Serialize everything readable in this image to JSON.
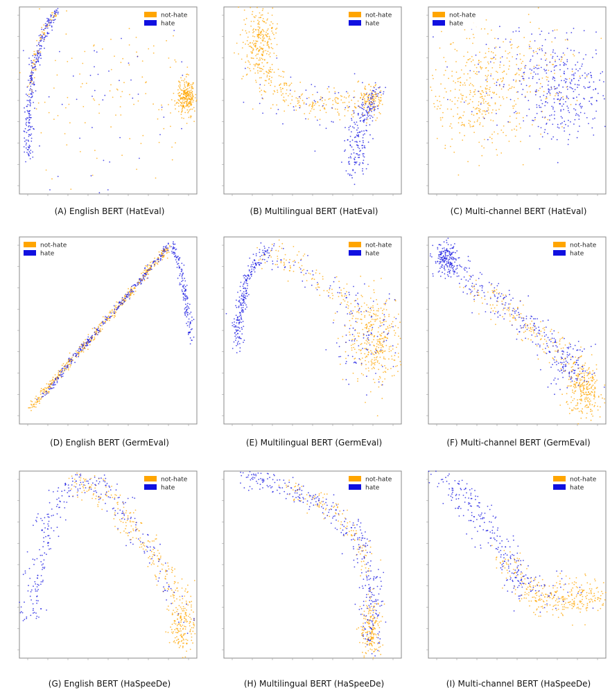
{
  "colors": {
    "not_hate": "#FFA500",
    "hate": "#1010E0",
    "frame": "#888888"
  },
  "chart_data": [
    {
      "id": "A",
      "type": "scatter",
      "caption": "(A) English BERT (HatEval)",
      "legend": [
        "not-hate",
        "hate"
      ],
      "legend_position": "top-right",
      "xlim": [
        -0.5,
        0.5
      ],
      "ylim": [
        -0.5,
        0.5
      ],
      "clusters": [
        {
          "series": "hate",
          "kind": "curve",
          "n": 260,
          "spread": 0.012,
          "points": [
            [
              -0.45,
              -0.3
            ],
            [
              -0.45,
              -0.1
            ],
            [
              -0.43,
              0.1
            ],
            [
              -0.39,
              0.28
            ],
            [
              -0.33,
              0.42
            ],
            [
              -0.28,
              0.48
            ]
          ]
        },
        {
          "series": "not-hate",
          "kind": "curve",
          "n": 70,
          "spread": 0.01,
          "points": [
            [
              -0.44,
              0.05
            ],
            [
              -0.41,
              0.25
            ],
            [
              -0.35,
              0.4
            ],
            [
              -0.29,
              0.47
            ]
          ]
        },
        {
          "series": "not-hate",
          "kind": "blob",
          "n": 260,
          "center": [
            0.44,
            0.02
          ],
          "spread": [
            0.025,
            0.05
          ]
        },
        {
          "series": "not-hate",
          "kind": "cloud",
          "n": 130,
          "center": [
            0.05,
            0.0
          ],
          "spread": [
            0.3,
            0.22
          ]
        },
        {
          "series": "hate",
          "kind": "cloud",
          "n": 45,
          "center": [
            0.0,
            -0.05
          ],
          "spread": [
            0.3,
            0.22
          ]
        }
      ]
    },
    {
      "id": "B",
      "type": "scatter",
      "caption": "(B) Multilingual BERT (HatEval)",
      "legend": [
        "not-hate",
        "hate"
      ],
      "legend_position": "top-right",
      "xlim": [
        -0.5,
        0.5
      ],
      "ylim": [
        -0.5,
        0.5
      ],
      "clusters": [
        {
          "series": "not-hate",
          "kind": "blob",
          "n": 260,
          "center": [
            -0.3,
            0.33
          ],
          "spread": [
            0.045,
            0.1
          ]
        },
        {
          "series": "not-hate",
          "kind": "curve",
          "n": 240,
          "spread": 0.035,
          "points": [
            [
              -0.3,
              0.2
            ],
            [
              -0.2,
              0.05
            ],
            [
              -0.05,
              -0.02
            ],
            [
              0.1,
              -0.02
            ],
            [
              0.22,
              -0.01
            ],
            [
              0.33,
              0.0
            ]
          ]
        },
        {
          "series": "not-hate",
          "kind": "blob",
          "n": 90,
          "center": [
            0.34,
            0.0
          ],
          "spread": [
            0.03,
            0.04
          ]
        },
        {
          "series": "hate",
          "kind": "curve",
          "n": 220,
          "spread": 0.03,
          "points": [
            [
              0.36,
              0.05
            ],
            [
              0.31,
              -0.05
            ],
            [
              0.26,
              -0.15
            ],
            [
              0.24,
              -0.25
            ],
            [
              0.24,
              -0.38
            ]
          ]
        },
        {
          "series": "hate",
          "kind": "cloud",
          "n": 45,
          "center": [
            0.0,
            0.0
          ],
          "spread": [
            0.18,
            0.08
          ]
        }
      ]
    },
    {
      "id": "C",
      "type": "scatter",
      "caption": "(C) Multi-channel BERT (HatEval)",
      "legend": [
        "not-hate",
        "hate"
      ],
      "legend_position": "top-left",
      "xlim": [
        -0.5,
        0.5
      ],
      "ylim": [
        -0.5,
        0.5
      ],
      "clusters": [
        {
          "series": "not-hate",
          "kind": "cloud",
          "n": 330,
          "center": [
            -0.22,
            0.02
          ],
          "spread": [
            0.14,
            0.15
          ]
        },
        {
          "series": "not-hate",
          "kind": "cloud",
          "n": 150,
          "center": [
            0.05,
            0.12
          ],
          "spread": [
            0.22,
            0.15
          ]
        },
        {
          "series": "hate",
          "kind": "cloud",
          "n": 300,
          "center": [
            0.27,
            0.05
          ],
          "spread": [
            0.12,
            0.13
          ]
        },
        {
          "series": "hate",
          "kind": "cloud",
          "n": 90,
          "center": [
            0.0,
            0.15
          ],
          "spread": [
            0.2,
            0.15
          ]
        }
      ]
    },
    {
      "id": "D",
      "type": "scatter",
      "caption": "(D) English BERT (GermEval)",
      "legend": [
        "not-hate",
        "hate"
      ],
      "legend_position": "top-left",
      "xlim": [
        -0.5,
        0.5
      ],
      "ylim": [
        -0.5,
        0.5
      ],
      "clusters": [
        {
          "series": "not-hate",
          "kind": "curve",
          "n": 450,
          "spread": 0.01,
          "points": [
            [
              -0.44,
              -0.42
            ],
            [
              -0.2,
              -0.15
            ],
            [
              0.05,
              0.12
            ],
            [
              0.25,
              0.35
            ],
            [
              0.35,
              0.45
            ]
          ]
        },
        {
          "series": "hate",
          "kind": "curve",
          "n": 280,
          "spread": 0.008,
          "points": [
            [
              -0.38,
              -0.37
            ],
            [
              -0.2,
              -0.15
            ],
            [
              0.05,
              0.12
            ],
            [
              0.25,
              0.35
            ],
            [
              0.34,
              0.45
            ]
          ]
        },
        {
          "series": "hate",
          "kind": "curve",
          "n": 150,
          "spread": 0.01,
          "points": [
            [
              0.36,
              0.46
            ],
            [
              0.41,
              0.32
            ],
            [
              0.45,
              0.12
            ],
            [
              0.47,
              -0.05
            ]
          ]
        }
      ]
    },
    {
      "id": "E",
      "type": "scatter",
      "caption": "(E) Multilingual BERT (GermEval)",
      "legend": [
        "not-hate",
        "hate"
      ],
      "legend_position": "top-right",
      "xlim": [
        -0.5,
        0.5
      ],
      "ylim": [
        -0.5,
        0.5
      ],
      "clusters": [
        {
          "series": "hate",
          "kind": "curve",
          "n": 230,
          "spread": 0.015,
          "points": [
            [
              -0.42,
              -0.1
            ],
            [
              -0.42,
              0.05
            ],
            [
              -0.38,
              0.25
            ],
            [
              -0.3,
              0.4
            ],
            [
              -0.23,
              0.44
            ]
          ]
        },
        {
          "series": "not-hate",
          "kind": "curve",
          "n": 120,
          "spread": 0.04,
          "points": [
            [
              -0.3,
              0.4
            ],
            [
              -0.15,
              0.38
            ],
            [
              0.0,
              0.3
            ],
            [
              0.15,
              0.18
            ],
            [
              0.3,
              0.05
            ]
          ]
        },
        {
          "series": "hate",
          "kind": "curve",
          "n": 60,
          "spread": 0.04,
          "points": [
            [
              -0.3,
              0.4
            ],
            [
              -0.15,
              0.38
            ],
            [
              0.0,
              0.3
            ],
            [
              0.15,
              0.18
            ],
            [
              0.3,
              0.05
            ]
          ]
        },
        {
          "series": "not-hate",
          "kind": "blob",
          "n": 330,
          "center": [
            0.36,
            -0.05
          ],
          "spread": [
            0.08,
            0.12
          ]
        },
        {
          "series": "hate",
          "kind": "blob",
          "n": 90,
          "center": [
            0.3,
            -0.05
          ],
          "spread": [
            0.1,
            0.12
          ]
        }
      ]
    },
    {
      "id": "F",
      "type": "scatter",
      "caption": "(F) Multi-channel BERT (GermEval)",
      "legend": [
        "not-hate",
        "hate"
      ],
      "legend_position": "top-right",
      "xlim": [
        -0.5,
        0.5
      ],
      "ylim": [
        -0.5,
        0.5
      ],
      "clusters": [
        {
          "series": "hate",
          "kind": "blob",
          "n": 170,
          "center": [
            -0.4,
            0.38
          ],
          "spread": [
            0.035,
            0.045
          ]
        },
        {
          "series": "hate",
          "kind": "curve",
          "n": 240,
          "spread": 0.04,
          "points": [
            [
              -0.4,
              0.38
            ],
            [
              -0.2,
              0.22
            ],
            [
              0.0,
              0.08
            ],
            [
              0.2,
              -0.08
            ],
            [
              0.38,
              -0.25
            ]
          ]
        },
        {
          "series": "not-hate",
          "kind": "curve",
          "n": 170,
          "spread": 0.04,
          "points": [
            [
              -0.25,
              0.25
            ],
            [
              -0.05,
              0.1
            ],
            [
              0.15,
              -0.05
            ],
            [
              0.35,
              -0.2
            ]
          ]
        },
        {
          "series": "not-hate",
          "kind": "blob",
          "n": 260,
          "center": [
            0.38,
            -0.32
          ],
          "spread": [
            0.05,
            0.07
          ]
        },
        {
          "series": "hate",
          "kind": "blob",
          "n": 70,
          "center": [
            0.3,
            -0.2
          ],
          "spread": [
            0.06,
            0.06
          ]
        }
      ]
    },
    {
      "id": "G",
      "type": "scatter",
      "caption": "(G) English BERT (HaSpeeDe)",
      "legend": [
        "not-hate",
        "hate"
      ],
      "legend_position": "top-right",
      "xlim": [
        -0.5,
        0.5
      ],
      "ylim": [
        -0.5,
        0.5
      ],
      "clusters": [
        {
          "series": "hate",
          "kind": "curve",
          "n": 230,
          "spread": 0.035,
          "points": [
            [
              -0.44,
              -0.3
            ],
            [
              -0.38,
              0.05
            ],
            [
              -0.3,
              0.3
            ],
            [
              -0.2,
              0.45
            ],
            [
              -0.05,
              0.42
            ],
            [
              0.1,
              0.32
            ]
          ]
        },
        {
          "series": "not-hate",
          "kind": "curve",
          "n": 200,
          "spread": 0.035,
          "points": [
            [
              -0.2,
              0.45
            ],
            [
              -0.05,
              0.38
            ],
            [
              0.1,
              0.25
            ],
            [
              0.25,
              0.05
            ],
            [
              0.38,
              -0.15
            ]
          ]
        },
        {
          "series": "not-hate",
          "kind": "blob",
          "n": 190,
          "center": [
            0.42,
            -0.3
          ],
          "spread": [
            0.035,
            0.09
          ]
        },
        {
          "series": "hate",
          "kind": "curve",
          "n": 70,
          "spread": 0.035,
          "points": [
            [
              0.05,
              0.3
            ],
            [
              0.2,
              0.1
            ],
            [
              0.35,
              -0.12
            ],
            [
              0.42,
              -0.32
            ]
          ]
        }
      ]
    },
    {
      "id": "H",
      "type": "scatter",
      "caption": "(H) Multilingual BERT (HaSpeeDe)",
      "legend": [
        "not-hate",
        "hate"
      ],
      "legend_position": "top-right",
      "xlim": [
        -0.5,
        0.5
      ],
      "ylim": [
        -0.5,
        0.5
      ],
      "clusters": [
        {
          "series": "hate",
          "kind": "curve",
          "n": 260,
          "spread": 0.03,
          "points": [
            [
              -0.42,
              0.47
            ],
            [
              -0.15,
              0.42
            ],
            [
              0.1,
              0.3
            ],
            [
              0.25,
              0.15
            ],
            [
              0.32,
              -0.05
            ],
            [
              0.34,
              -0.25
            ]
          ]
        },
        {
          "series": "not-hate",
          "kind": "curve",
          "n": 120,
          "spread": 0.03,
          "points": [
            [
              -0.15,
              0.42
            ],
            [
              0.1,
              0.3
            ],
            [
              0.25,
              0.15
            ],
            [
              0.32,
              -0.05
            ]
          ]
        },
        {
          "series": "not-hate",
          "kind": "blob",
          "n": 180,
          "center": [
            0.33,
            -0.35
          ],
          "spread": [
            0.03,
            0.08
          ]
        },
        {
          "series": "hate",
          "kind": "blob",
          "n": 70,
          "center": [
            0.33,
            -0.3
          ],
          "spread": [
            0.03,
            0.1
          ]
        }
      ]
    },
    {
      "id": "I",
      "type": "scatter",
      "caption": "(I) Multi-channel BERT (HaSpeeDe)",
      "legend": [
        "not-hate",
        "hate"
      ],
      "legend_position": "top-right",
      "xlim": [
        -0.5,
        0.5
      ],
      "ylim": [
        -0.5,
        0.5
      ],
      "clusters": [
        {
          "series": "hate",
          "kind": "curve",
          "n": 230,
          "spread": 0.04,
          "points": [
            [
              -0.42,
              0.47
            ],
            [
              -0.25,
              0.3
            ],
            [
              -0.1,
              0.1
            ],
            [
              0.0,
              -0.05
            ],
            [
              0.05,
              -0.12
            ]
          ]
        },
        {
          "series": "not-hate",
          "kind": "blob",
          "n": 260,
          "center": [
            0.3,
            -0.17
          ],
          "spread": [
            0.13,
            0.05
          ]
        },
        {
          "series": "not-hate",
          "kind": "curve",
          "n": 80,
          "spread": 0.04,
          "points": [
            [
              -0.1,
              0.05
            ],
            [
              0.05,
              -0.1
            ],
            [
              0.15,
              -0.2
            ]
          ]
        },
        {
          "series": "hate",
          "kind": "cloud",
          "n": 40,
          "center": [
            0.15,
            -0.15
          ],
          "spread": [
            0.12,
            0.06
          ]
        }
      ]
    }
  ]
}
